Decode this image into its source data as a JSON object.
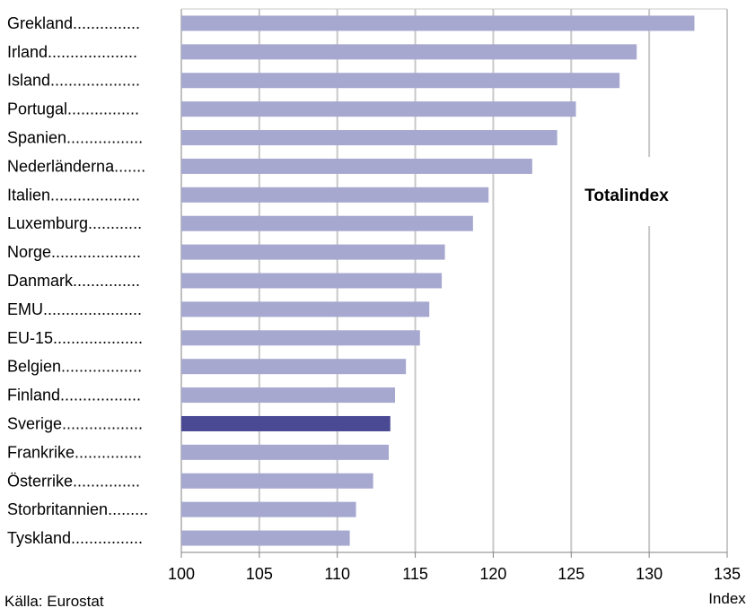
{
  "chart_data": {
    "type": "bar",
    "orientation": "horizontal",
    "categories": [
      "Grekland...............",
      "Irland....................",
      "Island....................",
      "Portugal................",
      "Spanien.................",
      "Nederländerna.......",
      "Italien....................",
      "Luxemburg............",
      "Norge....................",
      "Danmark...............",
      "EMU......................",
      "EU-15....................",
      "Belgien..................",
      "Finland..................",
      "Sverige..................",
      "Frankrike...............",
      "Österrike...............",
      "Storbritannien.........",
      "Tyskland................"
    ],
    "values": [
      132.9,
      129.2,
      128.1,
      125.3,
      124.1,
      122.5,
      119.7,
      118.7,
      116.9,
      116.7,
      115.9,
      115.3,
      114.4,
      113.7,
      113.4,
      113.3,
      112.3,
      111.2,
      110.8
    ],
    "highlight": "Sverige..................",
    "xlim": [
      100,
      135
    ],
    "xticks": [
      "100",
      "105",
      "110",
      "115",
      "120",
      "125",
      "130",
      "135"
    ],
    "xlabel": "Index",
    "annotation": "Totalindex",
    "source": "Källa: Eurostat",
    "grid": "vertical",
    "colors": {
      "bar": "#a6a8d0",
      "highlight": "#4a4a94",
      "grid": "#c8c8c8",
      "axis": "#808080"
    }
  }
}
